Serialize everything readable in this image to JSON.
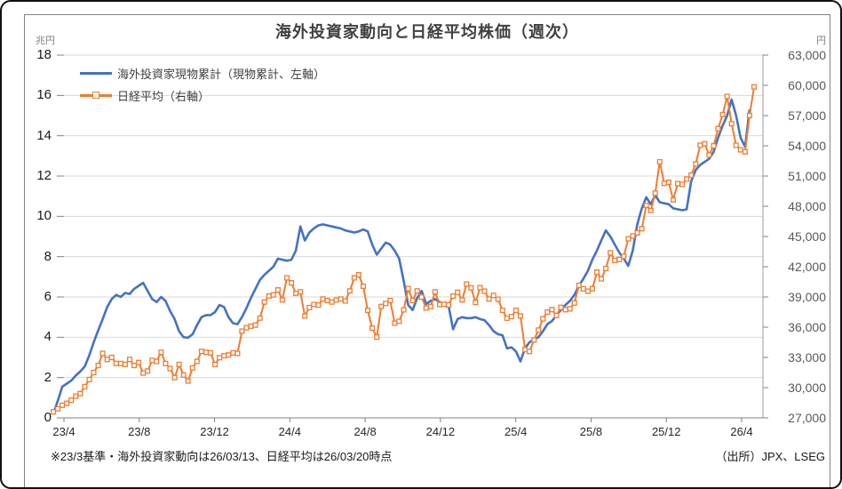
{
  "chart_data": {
    "type": "line",
    "title": "海外投資家動向と日経平均株価（週次）",
    "frequency": "weekly",
    "left_axis": {
      "unit": "兆円",
      "ylim": [
        0,
        18
      ],
      "tick_step": 2,
      "tick_labels": [
        "18",
        "16",
        "14",
        "12",
        "10",
        "8",
        "6",
        "4",
        "2",
        "0"
      ]
    },
    "right_axis": {
      "unit": "円",
      "ylim": [
        27000,
        63000
      ],
      "tick_step": 3000,
      "tick_labels": [
        "63,000",
        "60,000",
        "57,000",
        "54,000",
        "51,000",
        "48,000",
        "45,000",
        "42,000",
        "39,000",
        "36,000",
        "33,000",
        "30,000",
        "27,000"
      ]
    },
    "x_axis": {
      "tick_labels": [
        "23/4",
        "23/8",
        "23/12",
        "24/4",
        "24/8",
        "24/12",
        "25/4",
        "25/8",
        "25/12",
        "26/4"
      ]
    },
    "grid": "horizontal",
    "legend_position": "top-left-inside",
    "series": [
      {
        "name": "海外投資家現物累計（現物累計、左軸）",
        "axis": "left",
        "color": "#4472C4",
        "marker": "none",
        "values": [
          0.2,
          0.85,
          1.55,
          1.7,
          1.85,
          2.1,
          2.3,
          2.55,
          3.1,
          3.75,
          4.35,
          4.9,
          5.5,
          5.9,
          6.1,
          6.0,
          6.2,
          6.15,
          6.4,
          6.55,
          6.7,
          6.3,
          5.9,
          5.75,
          6.0,
          5.8,
          5.3,
          4.9,
          4.3,
          4.0,
          3.98,
          4.15,
          4.6,
          5.0,
          5.1,
          5.1,
          5.25,
          5.6,
          5.5,
          5.0,
          4.7,
          4.65,
          5.0,
          5.45,
          5.95,
          6.4,
          6.85,
          7.1,
          7.3,
          7.5,
          7.9,
          7.85,
          7.8,
          7.85,
          8.3,
          9.5,
          8.8,
          9.2,
          9.4,
          9.55,
          9.6,
          9.55,
          9.5,
          9.45,
          9.4,
          9.3,
          9.25,
          9.2,
          9.25,
          9.35,
          9.25,
          8.6,
          8.1,
          8.4,
          8.7,
          8.6,
          8.3,
          7.9,
          6.8,
          5.6,
          5.35,
          5.95,
          6.3,
          5.65,
          5.8,
          5.9,
          5.75,
          5.6,
          5.55,
          4.4,
          4.9,
          5.0,
          4.95,
          4.95,
          5.0,
          4.9,
          4.85,
          4.6,
          4.3,
          4.15,
          4.1,
          3.45,
          3.5,
          3.3,
          2.8,
          3.45,
          3.75,
          3.9,
          4.0,
          4.3,
          4.65,
          4.8,
          5.1,
          5.35,
          5.6,
          5.8,
          6.1,
          6.55,
          6.9,
          7.3,
          7.85,
          8.3,
          8.8,
          9.3,
          9.0,
          8.6,
          8.2,
          7.9,
          7.55,
          8.3,
          9.6,
          10.4,
          10.95,
          10.6,
          11.05,
          10.7,
          10.65,
          10.6,
          10.4,
          10.35,
          10.3,
          10.35,
          11.75,
          12.3,
          12.55,
          12.7,
          12.85,
          13.2,
          13.9,
          14.5,
          15.0,
          15.8,
          15.0,
          13.9,
          13.45,
          15.3
        ]
      },
      {
        "name": "日経平均（右軸）",
        "axis": "right",
        "color": "#ED7D31",
        "marker": "hollow-square",
        "values": [
          27600,
          27900,
          28250,
          28450,
          28750,
          29150,
          29400,
          30100,
          30800,
          31500,
          32200,
          33400,
          32800,
          33000,
          32400,
          32400,
          32300,
          32800,
          32200,
          32500,
          31450,
          31650,
          32700,
          32600,
          33500,
          32400,
          31900,
          31000,
          32300,
          31250,
          30650,
          31950,
          32600,
          33600,
          33500,
          33450,
          32300,
          32970,
          33170,
          33250,
          33450,
          33400,
          35600,
          35950,
          36100,
          36200,
          36900,
          38500,
          39100,
          39200,
          39700,
          38700,
          40900,
          40400,
          39350,
          39500,
          37100,
          37950,
          38250,
          38200,
          38800,
          38650,
          38500,
          38700,
          38800,
          38600,
          39600,
          40900,
          41200,
          40060,
          37670,
          35910,
          35020,
          38060,
          38360,
          38650,
          36400,
          36580,
          37720,
          39830,
          38640,
          39600,
          38980,
          37910,
          38050,
          39500,
          38250,
          38280,
          38210,
          39090,
          39470,
          38700,
          40280,
          39900,
          38450,
          39930,
          39570,
          38800,
          39150,
          38780,
          37680,
          36890,
          37050,
          37680,
          37120,
          33780,
          33590,
          34730,
          35710,
          36830,
          37500,
          37750,
          37160,
          37970,
          37740,
          37830,
          38400,
          40150,
          39810,
          39570,
          39820,
          41460,
          40800,
          41820,
          43380,
          42630,
          42720,
          43020,
          44770,
          45050,
          45350,
          45770,
          48090,
          47580,
          49300,
          52410,
          50280,
          50380,
          48630,
          50250,
          50170,
          50700,
          51100,
          52200,
          54050,
          54200,
          53100,
          54000,
          55700,
          57100,
          58900,
          56200,
          54050,
          53600,
          53400,
          57000,
          59850
        ]
      }
    ],
    "footnote": "※23/3基準・海外投資家動向は26/03/13、日経平均は26/03/20時点",
    "source": "（出所）JPX、LSEG",
    "colors": {
      "grid": "#D9D9D9",
      "axis": "#808080",
      "title": "#404040"
    }
  }
}
